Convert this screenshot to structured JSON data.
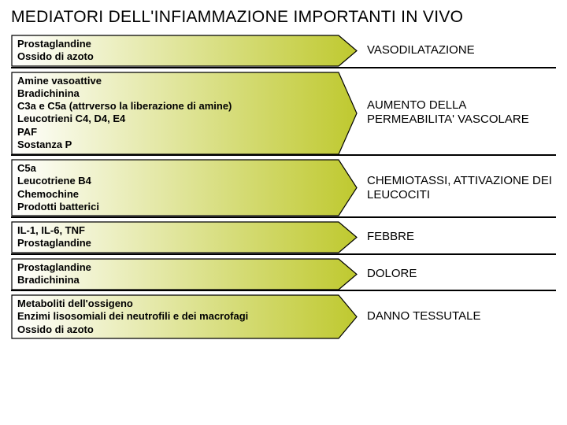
{
  "title": "MEDIATORI DELL'INFIAMMAZIONE IMPORTANTI IN VIVO",
  "colors": {
    "gradient_from": "#ffffff",
    "gradient_to": "#bfc92f",
    "stroke": "#000000",
    "background": "#ffffff",
    "text": "#000000",
    "title_fontsize": 21,
    "arrow_fontsize": 13,
    "effect_fontsize": 15
  },
  "rows": [
    {
      "mediators": "Prostaglandine\nOssido di azoto",
      "effect": "VASODILATAZIONE"
    },
    {
      "mediators": "Amine vasoattive\nBradichinina\nC3a e C5a (attrverso la liberazione di amine)\nLeucotrieni C4, D4, E4\nPAF\nSostanza P",
      "effect": "AUMENTO DELLA PERMEABILITA' VASCOLARE"
    },
    {
      "mediators": "C5a\nLeucotriene B4\nChemochine\nProdotti batterici",
      "effect": "CHEMIOTASSI, ATTIVAZIONE DEI LEUCOCITI"
    },
    {
      "mediators": "IL-1, IL-6, TNF\nProstaglandine",
      "effect": "FEBBRE"
    },
    {
      "mediators": "Prostaglandine\nBradichinina",
      "effect": "DOLORE"
    },
    {
      "mediators": "Metaboliti dell'ossigeno\nEnzimi lisosomiali dei neutrofili e dei macrofagi\nOssido di azoto",
      "effect": "DANNO TESSUTALE"
    }
  ]
}
